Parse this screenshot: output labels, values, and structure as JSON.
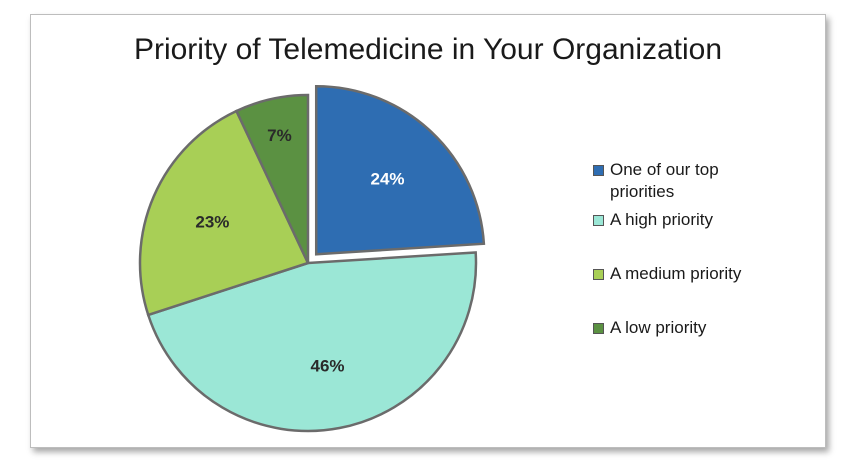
{
  "chart_data": {
    "type": "pie",
    "title": "Priority of Telemedicine in Your Organization",
    "categories": [
      "One of our top priorities",
      "A high priority",
      "A medium priority",
      "A low priority"
    ],
    "values": [
      24,
      46,
      23,
      7
    ],
    "labels": [
      "24%",
      "46%",
      "23%",
      "7%"
    ],
    "colors": [
      "#2e6db2",
      "#9be7d6",
      "#a8cf56",
      "#5b9142"
    ],
    "exploded": "One of our top priorities",
    "legend_position": "right"
  },
  "legend": {
    "items": [
      {
        "label_line1": "One of our top",
        "label_line2": "priorities"
      },
      {
        "label_line1": "A high priority"
      },
      {
        "label_line1": "A medium priority"
      },
      {
        "label_line1": "A low priority"
      }
    ]
  }
}
